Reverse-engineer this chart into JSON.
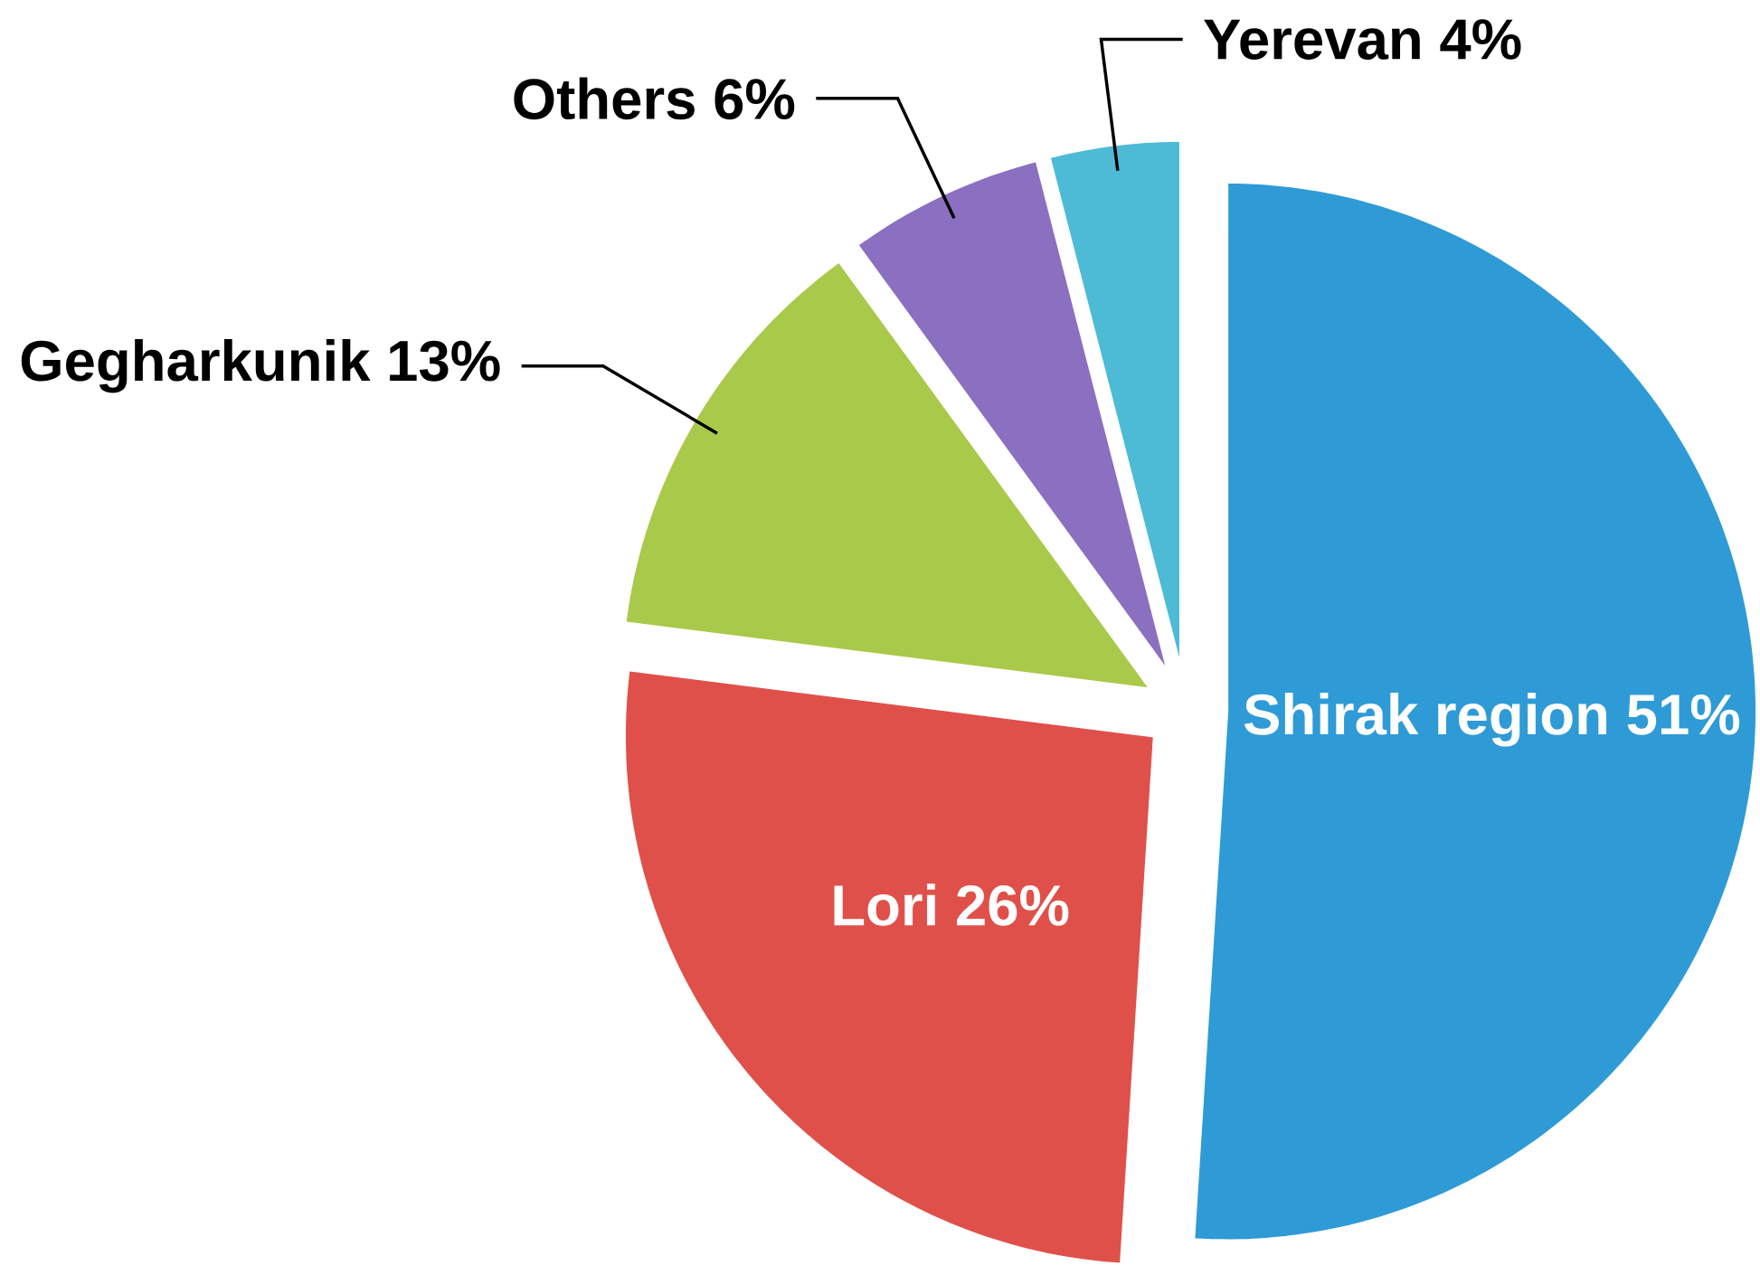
{
  "chart_data": {
    "type": "pie",
    "categories": [
      "Shirak region",
      "Lori",
      "Gegharkunik",
      "Others",
      "Yerevan"
    ],
    "values": [
      51,
      26,
      13,
      6,
      4
    ],
    "value_labels": [
      "51%",
      "26%",
      "13%",
      "6%",
      "4%"
    ],
    "colors": [
      "#2e9bd6",
      "#e0504a",
      "#a9c94a",
      "#8b6fc0",
      "#4dbad6"
    ]
  }
}
